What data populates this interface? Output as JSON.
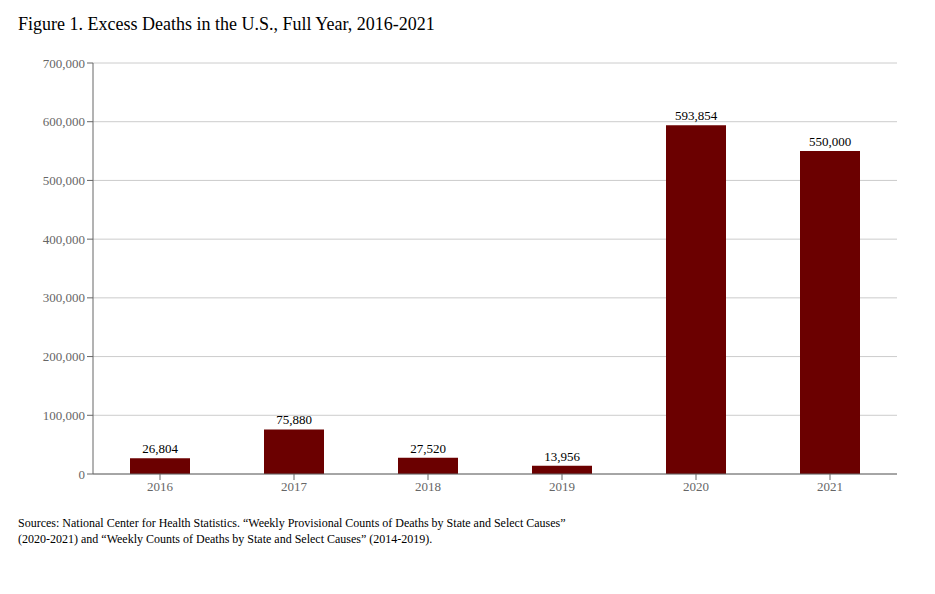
{
  "chart_data": {
    "type": "bar",
    "title": "Figure 1. Excess Deaths in the U.S., Full Year, 2016-2021",
    "annotations": [
      "Sources: National Center for Health Statistics. “Weekly Provisional Counts of Deaths by State and Select Causes”",
      "(2020-2021) and “Weekly Counts of Deaths by State and Select Causes” (2014-2019)."
    ],
    "categories": [
      "2016",
      "2017",
      "2018",
      "2019",
      "2020",
      "2021"
    ],
    "values": [
      26804,
      75880,
      27520,
      13956,
      593854,
      550000
    ],
    "value_labels": [
      "26,804",
      "75,880",
      "27,520",
      "13,956",
      "593,854",
      "550,000"
    ],
    "data_labels": true,
    "color": "#6B0000",
    "ylim": [
      0,
      700000
    ],
    "yticks": [
      0,
      {
        "value": 100000,
        "label": "100,000"
      },
      {
        "value": 200000,
        "label": "200,000"
      },
      {
        "value": 300000,
        "label": "300,000"
      },
      {
        "value": 400000,
        "label": "400,000"
      },
      {
        "value": 500000,
        "label": "500,000"
      },
      {
        "value": 600000,
        "label": "600,000"
      },
      {
        "value": 700000,
        "label": "700,000"
      }
    ],
    "grid": true
  }
}
